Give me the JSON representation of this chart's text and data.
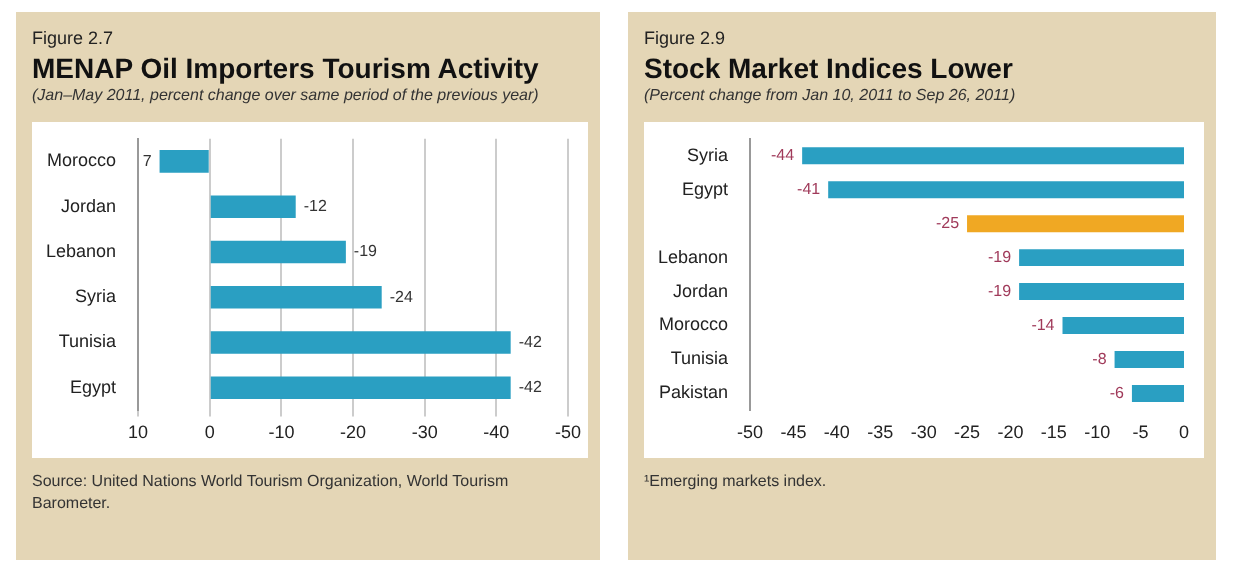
{
  "chart_data": [
    {
      "type": "bar",
      "orientation": "horizontal",
      "title": "MENAP Oil Importers Tourism Activity",
      "subtitle": "(Jan–May 2011, percent change over same period of the previous year)",
      "categories": [
        "Morocco",
        "Jordan",
        "Lebanon",
        "Syria",
        "Tunisia",
        "Egypt"
      ],
      "values": [
        7,
        -12,
        -19,
        -24,
        -42,
        -42
      ],
      "color": "#2a9fc2",
      "xlim": [
        10,
        -50
      ],
      "xticks": [
        10,
        0,
        -10,
        -20,
        -30,
        -40,
        -50
      ],
      "grid": "x",
      "data_labels": true,
      "legend": false,
      "annotations": [
        "Figure 2.7",
        "Source: United Nations World Tourism Organization, World Tourism Barometer."
      ]
    },
    {
      "type": "bar",
      "orientation": "horizontal",
      "title": "Stock Market Indices Lower",
      "subtitle": "(Percent change from Jan 10, 2011 to Sep 26, 2011)",
      "categories": [
        "Syria",
        "Egypt",
        null,
        "Lebanon",
        "Jordan",
        "Morocco",
        "Tunisia",
        "Pakistan"
      ],
      "values": [
        -44,
        -41,
        -25,
        -19,
        -19,
        -14,
        -8,
        -6
      ],
      "colors": [
        "#2a9fc2",
        "#2a9fc2",
        "#f0a823",
        "#2a9fc2",
        "#2a9fc2",
        "#2a9fc2",
        "#2a9fc2",
        "#2a9fc2"
      ],
      "xlim": [
        -50,
        0
      ],
      "xticks": [
        -50,
        -45,
        -40,
        -35,
        -30,
        -25,
        -20,
        -15,
        -10,
        -5,
        0
      ],
      "grid": false,
      "data_labels": true,
      "legend": false,
      "annotations": [
        "Figure 2.9",
        "¹Emerging markets index."
      ]
    }
  ]
}
